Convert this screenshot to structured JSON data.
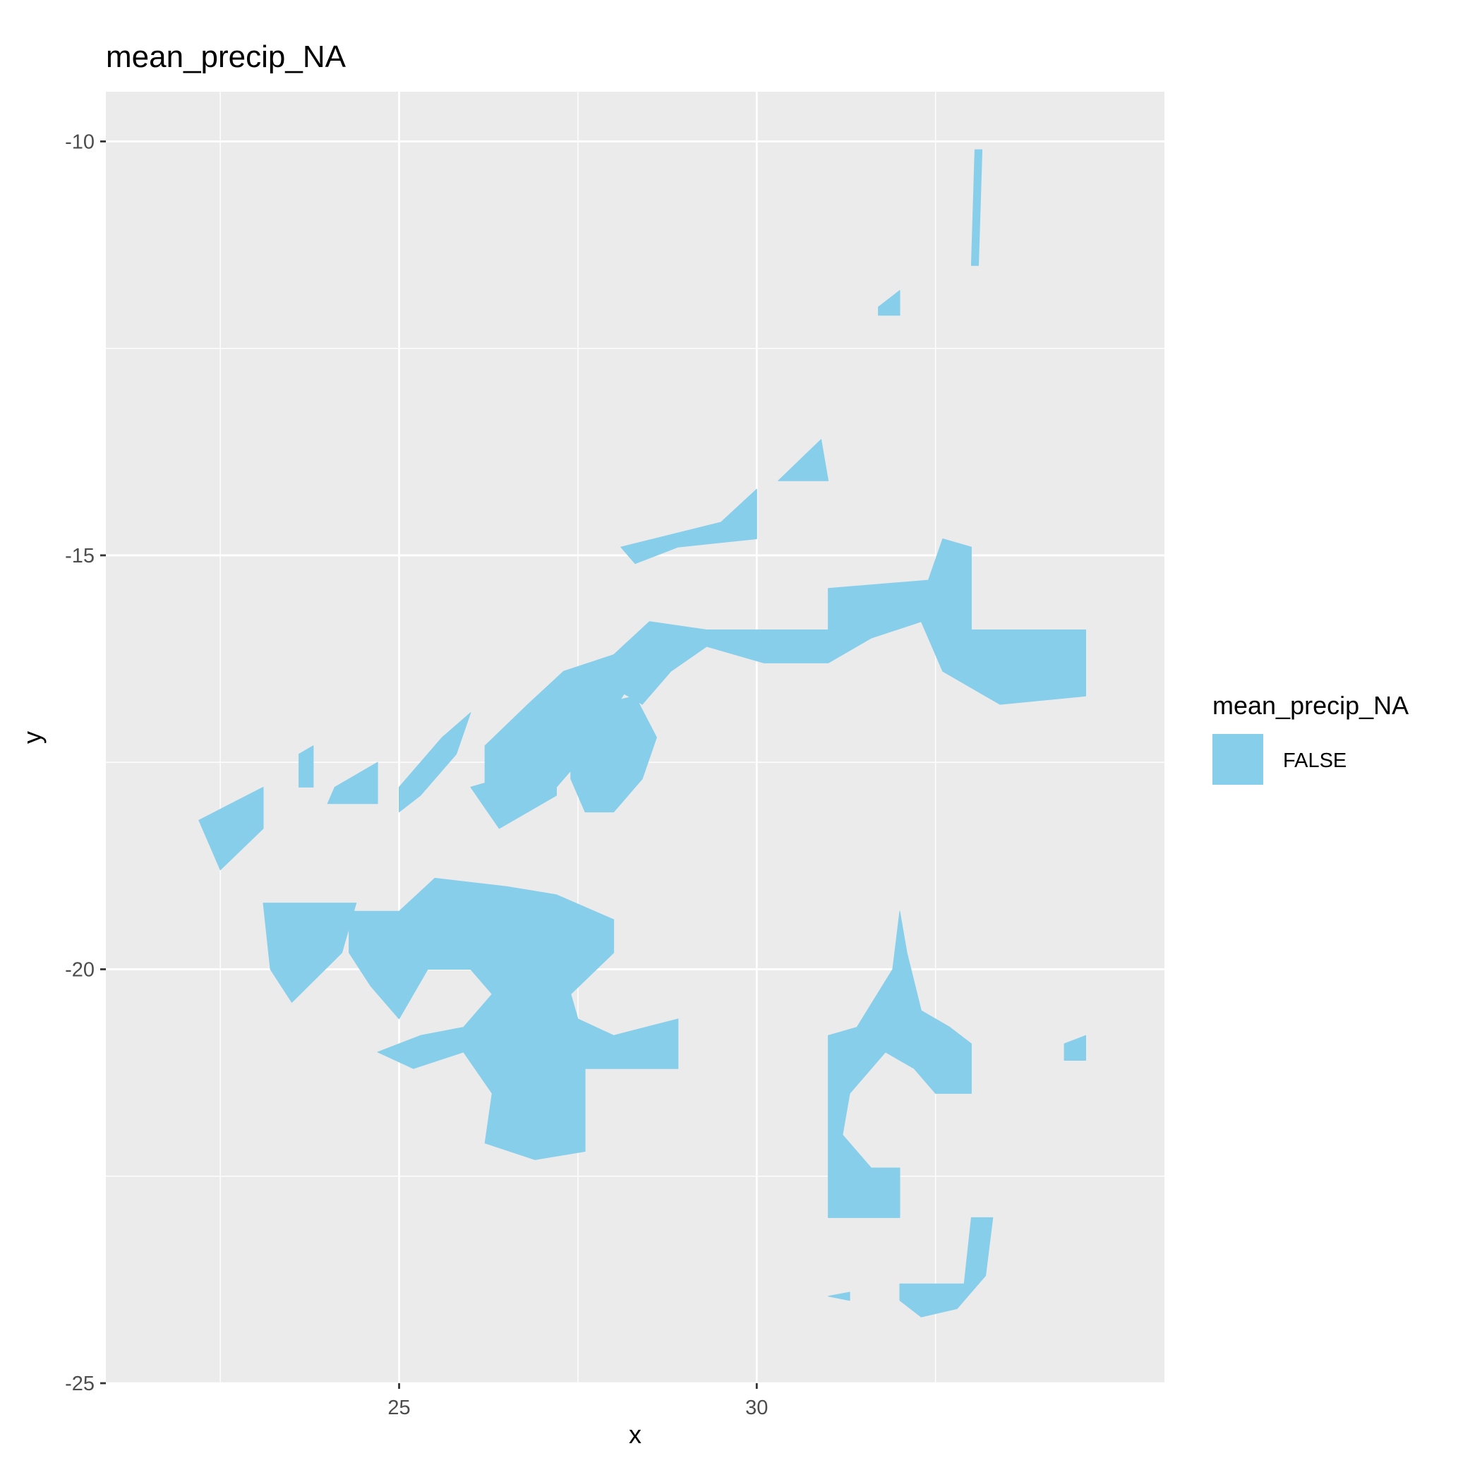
{
  "chart_data": {
    "type": "raster-map",
    "title": "mean_precip_NA",
    "xlabel": "x",
    "ylabel": "y",
    "xlim": [
      20.9,
      35.7
    ],
    "ylim": [
      -25,
      -9.4
    ],
    "x_ticks": [
      25,
      30
    ],
    "y_ticks": [
      -10,
      -15,
      -20,
      -25
    ],
    "grid": true,
    "legend": {
      "title": "mean_precip_NA",
      "position": "right",
      "entries": [
        {
          "label": "FALSE",
          "color": "#87CEEB"
        }
      ]
    },
    "fill_color": "#87CEEB",
    "regions": [
      [
        [
          33.05,
          -10.1
        ],
        [
          33.15,
          -10.1
        ],
        [
          33.1,
          -11.5
        ],
        [
          33.0,
          -11.5
        ]
      ],
      [
        [
          31.7,
          -12.0
        ],
        [
          32.0,
          -11.8
        ],
        [
          32.0,
          -12.1
        ],
        [
          31.7,
          -12.1
        ]
      ],
      [
        [
          30.3,
          -14.1
        ],
        [
          30.9,
          -13.6
        ],
        [
          31.0,
          -14.1
        ]
      ],
      [
        [
          28.1,
          -14.9
        ],
        [
          29.5,
          -14.6
        ],
        [
          30.0,
          -14.2
        ],
        [
          30.0,
          -14.8
        ],
        [
          28.9,
          -14.9
        ],
        [
          28.3,
          -15.1
        ]
      ],
      [
        [
          28.0,
          -16.2
        ],
        [
          28.5,
          -15.8
        ],
        [
          29.3,
          -15.9
        ],
        [
          31.0,
          -15.9
        ],
        [
          31.0,
          -15.4
        ],
        [
          32.4,
          -15.3
        ],
        [
          32.6,
          -14.8
        ],
        [
          33.0,
          -14.9
        ],
        [
          33.0,
          -15.9
        ],
        [
          34.6,
          -15.9
        ],
        [
          34.6,
          -16.7
        ],
        [
          33.4,
          -16.8
        ],
        [
          32.6,
          -16.4
        ],
        [
          32.3,
          -15.8
        ],
        [
          31.6,
          -16.0
        ],
        [
          31.0,
          -16.3
        ],
        [
          30.1,
          -16.3
        ],
        [
          29.3,
          -16.1
        ],
        [
          28.8,
          -16.4
        ],
        [
          28.4,
          -16.8
        ],
        [
          28.0,
          -16.6
        ]
      ],
      [
        [
          26.2,
          -17.3
        ],
        [
          26.8,
          -16.8
        ],
        [
          27.3,
          -16.4
        ],
        [
          28.0,
          -16.2
        ],
        [
          28.2,
          -16.6
        ],
        [
          27.6,
          -17.4
        ],
        [
          27.1,
          -17.9
        ],
        [
          26.8,
          -18.1
        ],
        [
          26.2,
          -18.0
        ]
      ],
      [
        [
          26.0,
          -17.8
        ],
        [
          27.2,
          -17.5
        ],
        [
          27.2,
          -17.9
        ],
        [
          26.4,
          -18.3
        ]
      ],
      [
        [
          27.4,
          -17.2
        ],
        [
          27.8,
          -16.8
        ],
        [
          28.3,
          -16.7
        ],
        [
          28.6,
          -17.2
        ],
        [
          28.4,
          -17.7
        ],
        [
          28.0,
          -18.1
        ],
        [
          27.6,
          -18.1
        ],
        [
          27.4,
          -17.7
        ]
      ],
      [
        [
          25.0,
          -17.8
        ],
        [
          25.6,
          -17.2
        ],
        [
          26.0,
          -16.9
        ],
        [
          25.8,
          -17.4
        ],
        [
          25.3,
          -17.9
        ],
        [
          25.0,
          -18.1
        ]
      ],
      [
        [
          23.6,
          -17.4
        ],
        [
          23.8,
          -17.3
        ],
        [
          23.8,
          -17.8
        ],
        [
          23.6,
          -17.8
        ]
      ],
      [
        [
          24.1,
          -17.8
        ],
        [
          24.7,
          -17.5
        ],
        [
          24.7,
          -18.0
        ],
        [
          24.0,
          -18.0
        ]
      ],
      [
        [
          22.2,
          -18.2
        ],
        [
          23.1,
          -17.8
        ],
        [
          23.1,
          -18.3
        ],
        [
          22.5,
          -18.8
        ]
      ],
      [
        [
          23.1,
          -19.2
        ],
        [
          24.4,
          -19.2
        ],
        [
          24.2,
          -19.8
        ],
        [
          23.5,
          -20.4
        ],
        [
          23.2,
          -20.0
        ]
      ],
      [
        [
          24.3,
          -19.3
        ],
        [
          25.0,
          -19.3
        ],
        [
          25.5,
          -18.9
        ],
        [
          26.5,
          -19.0
        ],
        [
          27.2,
          -19.1
        ],
        [
          28.0,
          -19.4
        ],
        [
          28.0,
          -19.8
        ],
        [
          27.4,
          -20.3
        ],
        [
          27.5,
          -20.6
        ],
        [
          28.0,
          -20.8
        ],
        [
          28.9,
          -20.6
        ],
        [
          28.9,
          -21.2
        ],
        [
          27.6,
          -21.2
        ],
        [
          27.6,
          -22.2
        ],
        [
          26.9,
          -22.3
        ],
        [
          26.2,
          -22.1
        ],
        [
          26.3,
          -21.5
        ],
        [
          25.9,
          -21.0
        ],
        [
          25.2,
          -21.2
        ],
        [
          24.7,
          -21.0
        ],
        [
          25.3,
          -20.8
        ],
        [
          25.9,
          -20.7
        ],
        [
          26.3,
          -20.3
        ],
        [
          26.0,
          -20.0
        ],
        [
          25.4,
          -20.0
        ],
        [
          25.0,
          -20.6
        ],
        [
          24.6,
          -20.2
        ],
        [
          24.3,
          -19.8
        ]
      ],
      [
        [
          31.0,
          -20.8
        ],
        [
          31.4,
          -20.7
        ],
        [
          31.9,
          -20.0
        ],
        [
          32.0,
          -19.3
        ],
        [
          32.1,
          -19.8
        ],
        [
          32.3,
          -20.5
        ],
        [
          32.7,
          -20.7
        ],
        [
          33.0,
          -20.9
        ],
        [
          33.0,
          -21.5
        ],
        [
          32.5,
          -21.5
        ],
        [
          32.2,
          -21.2
        ],
        [
          31.8,
          -21.0
        ],
        [
          31.3,
          -21.5
        ],
        [
          31.2,
          -22.0
        ],
        [
          31.6,
          -22.4
        ],
        [
          32.0,
          -22.4
        ],
        [
          32.0,
          -23.0
        ],
        [
          31.0,
          -23.0
        ]
      ],
      [
        [
          34.3,
          -20.9
        ],
        [
          34.6,
          -20.8
        ],
        [
          34.6,
          -21.1
        ],
        [
          34.3,
          -21.1
        ]
      ],
      [
        [
          31.0,
          -23.95
        ],
        [
          31.3,
          -23.9
        ],
        [
          31.3,
          -24.0
        ]
      ],
      [
        [
          32.0,
          -23.8
        ],
        [
          32.9,
          -23.8
        ],
        [
          33.0,
          -23.0
        ],
        [
          33.3,
          -23.0
        ],
        [
          33.2,
          -23.7
        ],
        [
          32.8,
          -24.1
        ],
        [
          32.3,
          -24.2
        ],
        [
          32.0,
          -24.0
        ]
      ]
    ]
  }
}
